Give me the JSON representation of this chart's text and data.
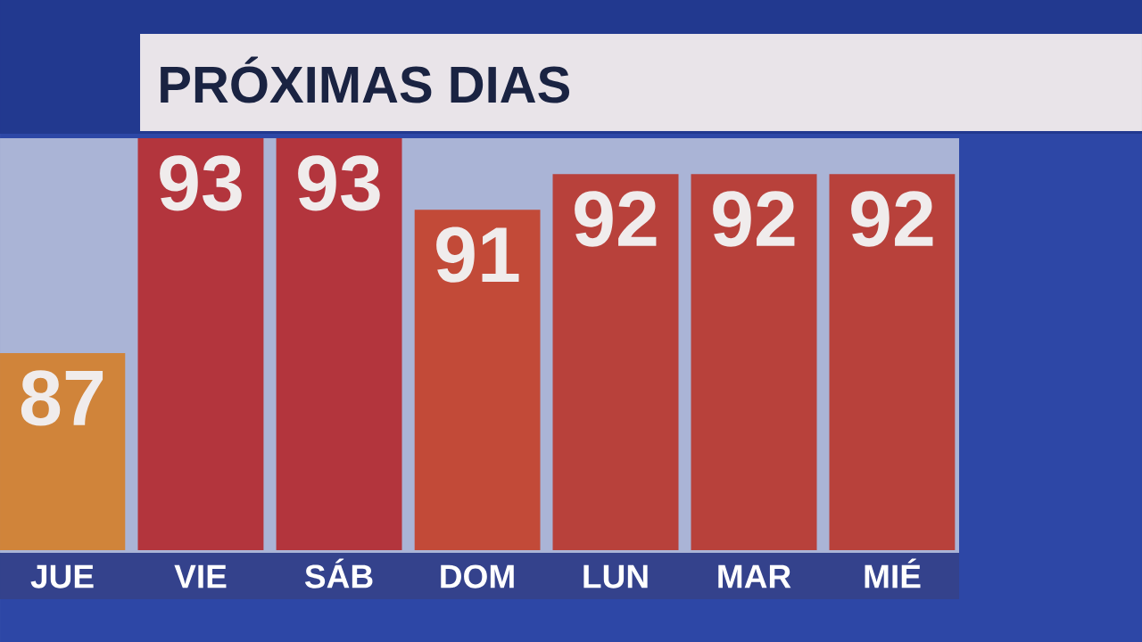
{
  "chart_data": {
    "type": "bar",
    "title": "PRÓXIMAS DIAS",
    "categories": [
      "JUE",
      "VIE",
      "SÁB",
      "DOM",
      "LUN",
      "MAR",
      "MIÉ"
    ],
    "values": [
      87,
      93,
      93,
      91,
      92,
      92,
      92
    ],
    "colors": [
      "#d0843a",
      "#b3353d",
      "#b3353d",
      "#c24a38",
      "#b8413b",
      "#b8413b",
      "#b8413b"
    ],
    "ylim": [
      81.5,
      93
    ],
    "data_labels": true,
    "tick_labels": "x"
  }
}
